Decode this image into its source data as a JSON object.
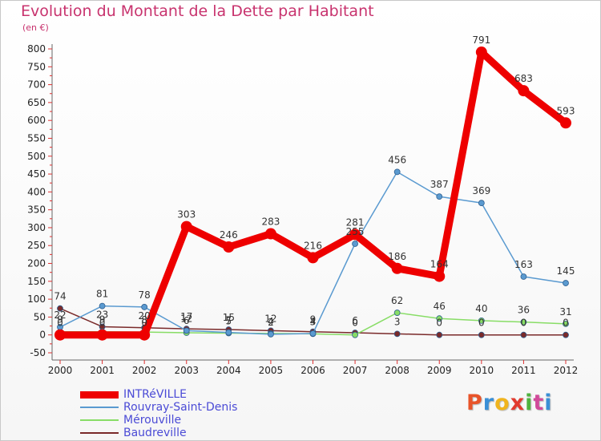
{
  "header": {
    "title": "Evolution du Montant de la Dette par Habitant",
    "subtitle": "(en €)"
  },
  "logo": {
    "text": "Proxiti",
    "colors": [
      "#e8542a",
      "#3a8fd6",
      "#f0b41e",
      "#e23a2e",
      "#4fb33f",
      "#d14a9a",
      "#3a8fd6"
    ]
  },
  "chart_data": {
    "type": "line",
    "title": "Evolution du Montant de la Dette par Habitant",
    "subtitle": "(en €)",
    "xlabel": "",
    "ylabel": "",
    "x": [
      "2000",
      "2001",
      "2002",
      "2003",
      "2004",
      "2005",
      "2006",
      "2007",
      "2008",
      "2009",
      "2010",
      "2011",
      "2012"
    ],
    "ylim": [
      -50,
      800
    ],
    "yticks": [
      "-50",
      "0",
      "50",
      "100",
      "150",
      "200",
      "250",
      "300",
      "350",
      "400",
      "450",
      "500",
      "550",
      "600",
      "650",
      "700",
      "750",
      "800"
    ],
    "grid": false,
    "legend_position": "bottom-left",
    "series": [
      {
        "name": "INTRéVILLE",
        "color": "#ee0000",
        "values": [
          0,
          0,
          0,
          303,
          246,
          283,
          216,
          281,
          186,
          164,
          791,
          683,
          593
        ],
        "labels": [
          "0",
          "0",
          "0",
          "303",
          "246",
          "283",
          "216",
          "281",
          "186",
          "164",
          "791",
          "683",
          "593"
        ]
      },
      {
        "name": "Rouvray-Saint-Denis",
        "color": "#5a9ad0",
        "values": [
          22,
          81,
          78,
          12,
          7,
          2,
          4,
          255,
          456,
          387,
          369,
          163,
          145
        ],
        "labels": [
          "22",
          "81",
          "78",
          "12",
          "7",
          "2",
          "4",
          "255",
          "456",
          "387",
          "369",
          "163",
          "145"
        ]
      },
      {
        "name": "Mérouville",
        "color": "#88dd66",
        "values": [
          9,
          9,
          8,
          6,
          5,
          4,
          3,
          0,
          62,
          46,
          40,
          36,
          31
        ],
        "labels": [
          "9",
          "9",
          "8",
          "6",
          "5",
          "4",
          "3",
          "0",
          "62",
          "46",
          "40",
          "36",
          "31"
        ]
      },
      {
        "name": "Baudreville",
        "color": "#7a2a2a",
        "values": [
          74,
          23,
          20,
          17,
          15,
          12,
          9,
          6,
          3,
          0,
          0,
          0,
          0
        ],
        "labels": [
          "74",
          "23",
          "20",
          "17",
          "15",
          "12",
          "9",
          "6",
          "3",
          "0",
          "0",
          "0",
          "0"
        ]
      }
    ]
  }
}
